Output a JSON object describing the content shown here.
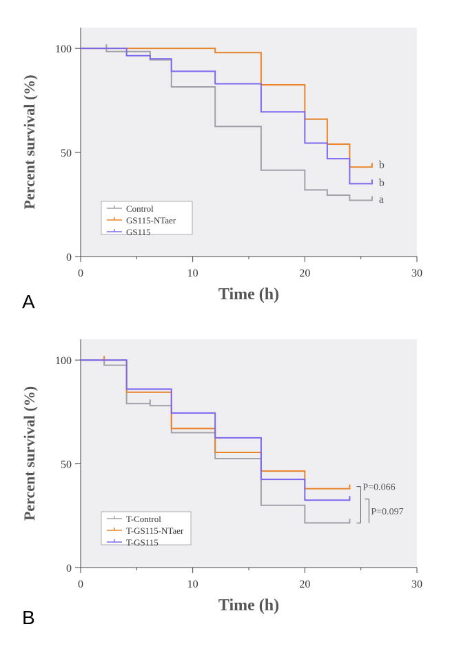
{
  "chart_data": [
    {
      "type": "line",
      "panel_label": "A",
      "xlabel": "Time (h)",
      "ylabel": "Percent survival (%)",
      "xlim": [
        0,
        30
      ],
      "ylim": [
        0,
        110
      ],
      "xticks": [
        "0",
        "10",
        "20",
        "30"
      ],
      "yticks": [
        "0",
        "50",
        "100"
      ],
      "legend_position": "bottom-left",
      "series": [
        {
          "name": "Control",
          "color": "#a0a0a8",
          "steps": [
            [
              0,
              100
            ],
            [
              2.3,
              98.5
            ],
            [
              6.2,
              94.5
            ],
            [
              8.1,
              81.5
            ],
            [
              12,
              62.5
            ],
            [
              16.1,
              41.5
            ],
            [
              20,
              32
            ],
            [
              22,
              29.5
            ],
            [
              24,
              27
            ],
            [
              26,
              27
            ]
          ],
          "censor": [
            [
              2.3,
              100
            ],
            [
              26,
              27
            ]
          ]
        },
        {
          "name": "GS115-NTaer",
          "color": "#e8832a",
          "steps": [
            [
              0,
              100
            ],
            [
              12,
              98
            ],
            [
              16.1,
              82.5
            ],
            [
              20,
              66
            ],
            [
              22,
              54
            ],
            [
              24,
              43
            ],
            [
              26,
              43
            ]
          ],
          "censor": [
            [
              26,
              43
            ]
          ]
        },
        {
          "name": "GS115",
          "color": "#7b68ee",
          "steps": [
            [
              0,
              100
            ],
            [
              4.1,
              96.5
            ],
            [
              6.2,
              95
            ],
            [
              8.1,
              89
            ],
            [
              12,
              83
            ],
            [
              16.1,
              69.5
            ],
            [
              20,
              54.5
            ],
            [
              22,
              47
            ],
            [
              24,
              35
            ],
            [
              26,
              35
            ]
          ],
          "censor": [
            [
              26,
              35
            ]
          ]
        }
      ],
      "annotations": [
        {
          "text": "b",
          "series": "GS115-NTaer",
          "y": 44
        },
        {
          "text": "b",
          "series": "GS115",
          "y": 35.5
        },
        {
          "text": "a",
          "series": "Control",
          "y": 27.5
        }
      ]
    },
    {
      "type": "line",
      "panel_label": "B",
      "xlabel": "Time (h)",
      "ylabel": "Percent survival (%)",
      "xlim": [
        0,
        30
      ],
      "ylim": [
        0,
        110
      ],
      "xticks": [
        "0",
        "10",
        "20",
        "30"
      ],
      "yticks": [
        "0",
        "50",
        "100"
      ],
      "legend_position": "bottom-left",
      "series": [
        {
          "name": "T-Control",
          "color": "#a0a0a8",
          "steps": [
            [
              0,
              100
            ],
            [
              2.1,
              97.5
            ],
            [
              4.1,
              79
            ],
            [
              6.2,
              78
            ],
            [
              8.1,
              65
            ],
            [
              12,
              52.5
            ],
            [
              16.1,
              30
            ],
            [
              20,
              21.5
            ],
            [
              24,
              21.5
            ]
          ],
          "censor": [
            [
              6.2,
              79
            ],
            [
              24,
              21.5
            ]
          ]
        },
        {
          "name": "T-GS115-NTaer",
          "color": "#e8832a",
          "steps": [
            [
              0,
              100
            ],
            [
              4.1,
              84.5
            ],
            [
              8.1,
              67
            ],
            [
              12,
              55.5
            ],
            [
              16.1,
              46.5
            ],
            [
              20,
              38
            ],
            [
              24,
              38
            ]
          ],
          "censor": [
            [
              2.1,
              100
            ],
            [
              24,
              38
            ]
          ]
        },
        {
          "name": "T-GS115",
          "color": "#7b68ee",
          "steps": [
            [
              0,
              100
            ],
            [
              4.1,
              86
            ],
            [
              8.1,
              74.5
            ],
            [
              12,
              62.5
            ],
            [
              16.1,
              42.5
            ],
            [
              20,
              32.5
            ],
            [
              24,
              32.5
            ]
          ],
          "censor": [
            [
              24,
              32.5
            ]
          ]
        }
      ],
      "pvalues": [
        {
          "text": "P=0.066",
          "y_from": 39,
          "y_to": 21.5
        },
        {
          "text": "P=0.097",
          "y_from": 33,
          "y_to": 21.5
        }
      ]
    }
  ]
}
